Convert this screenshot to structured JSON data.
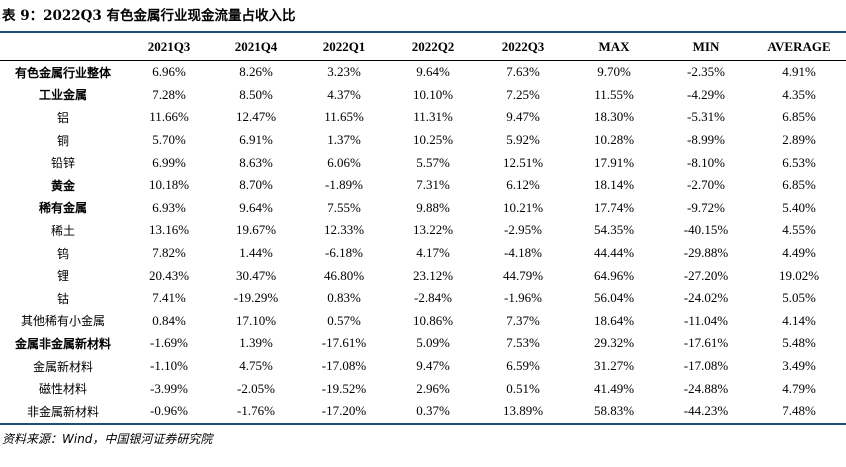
{
  "title": "表 9：2022Q3 有色金属行业现金流量占收入比",
  "columns": [
    "",
    "2021Q3",
    "2021Q4",
    "2022Q1",
    "2022Q2",
    "2022Q3",
    "MAX",
    "MIN",
    "AVERAGE"
  ],
  "rows": [
    {
      "label": "有色金属行业整体",
      "bold": true,
      "values": [
        "6.96%",
        "8.26%",
        "3.23%",
        "9.64%",
        "7.63%",
        "9.70%",
        "-2.35%",
        "4.91%"
      ]
    },
    {
      "label": "工业金属",
      "bold": true,
      "values": [
        "7.28%",
        "8.50%",
        "4.37%",
        "10.10%",
        "7.25%",
        "11.55%",
        "-4.29%",
        "4.35%"
      ]
    },
    {
      "label": "铝",
      "bold": false,
      "values": [
        "11.66%",
        "12.47%",
        "11.65%",
        "11.31%",
        "9.47%",
        "18.30%",
        "-5.31%",
        "6.85%"
      ]
    },
    {
      "label": "铜",
      "bold": false,
      "values": [
        "5.70%",
        "6.91%",
        "1.37%",
        "10.25%",
        "5.92%",
        "10.28%",
        "-8.99%",
        "2.89%"
      ]
    },
    {
      "label": "铅锌",
      "bold": false,
      "values": [
        "6.99%",
        "8.63%",
        "6.06%",
        "5.57%",
        "12.51%",
        "17.91%",
        "-8.10%",
        "6.53%"
      ]
    },
    {
      "label": "黄金",
      "bold": true,
      "values": [
        "10.18%",
        "8.70%",
        "-1.89%",
        "7.31%",
        "6.12%",
        "18.14%",
        "-2.70%",
        "6.85%"
      ]
    },
    {
      "label": "稀有金属",
      "bold": true,
      "values": [
        "6.93%",
        "9.64%",
        "7.55%",
        "9.88%",
        "10.21%",
        "17.74%",
        "-9.72%",
        "5.40%"
      ]
    },
    {
      "label": "稀土",
      "bold": false,
      "values": [
        "13.16%",
        "19.67%",
        "12.33%",
        "13.22%",
        "-2.95%",
        "54.35%",
        "-40.15%",
        "4.55%"
      ]
    },
    {
      "label": "钨",
      "bold": false,
      "values": [
        "7.82%",
        "1.44%",
        "-6.18%",
        "4.17%",
        "-4.18%",
        "44.44%",
        "-29.88%",
        "4.49%"
      ]
    },
    {
      "label": "锂",
      "bold": false,
      "values": [
        "20.43%",
        "30.47%",
        "46.80%",
        "23.12%",
        "44.79%",
        "64.96%",
        "-27.20%",
        "19.02%"
      ]
    },
    {
      "label": "钴",
      "bold": false,
      "values": [
        "7.41%",
        "-19.29%",
        "0.83%",
        "-2.84%",
        "-1.96%",
        "56.04%",
        "-24.02%",
        "5.05%"
      ]
    },
    {
      "label": "其他稀有小金属",
      "bold": false,
      "values": [
        "0.84%",
        "17.10%",
        "0.57%",
        "10.86%",
        "7.37%",
        "18.64%",
        "-11.04%",
        "4.14%"
      ]
    },
    {
      "label": "金属非金属新材料",
      "bold": true,
      "values": [
        "-1.69%",
        "1.39%",
        "-17.61%",
        "5.09%",
        "7.53%",
        "29.32%",
        "-17.61%",
        "5.48%"
      ]
    },
    {
      "label": "金属新材料",
      "bold": false,
      "values": [
        "-1.10%",
        "4.75%",
        "-17.08%",
        "9.47%",
        "6.59%",
        "31.27%",
        "-17.08%",
        "3.49%"
      ]
    },
    {
      "label": "磁性材料",
      "bold": false,
      "values": [
        "-3.99%",
        "-2.05%",
        "-19.52%",
        "2.96%",
        "0.51%",
        "41.49%",
        "-24.88%",
        "4.79%"
      ]
    },
    {
      "label": "非金属新材料",
      "bold": false,
      "values": [
        "-0.96%",
        "-1.76%",
        "-17.20%",
        "0.37%",
        "13.89%",
        "58.83%",
        "-44.23%",
        "7.48%"
      ]
    }
  ],
  "source": "资料来源：Wind，中国银河证券研究院"
}
